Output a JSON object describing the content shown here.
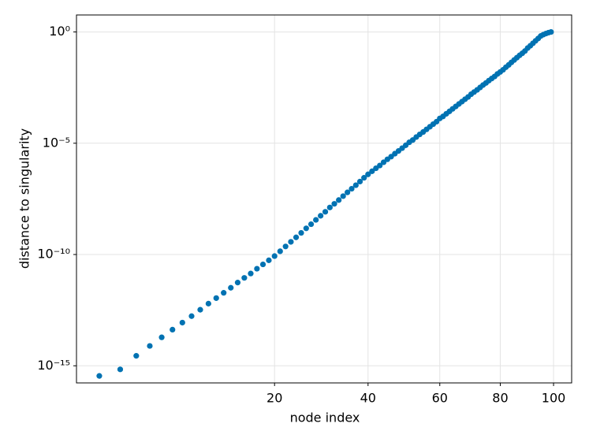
{
  "chart_data": {
    "type": "scatter",
    "xlabel": "node index",
    "ylabel": "distance to singularity",
    "x": [
      1,
      2,
      3,
      4,
      5,
      6,
      7,
      8,
      9,
      10,
      11,
      12,
      13,
      14,
      15,
      16,
      17,
      18,
      19,
      20,
      21,
      22,
      23,
      24,
      25,
      26,
      27,
      28,
      29,
      30,
      31,
      32,
      33,
      34,
      35,
      36,
      37,
      38,
      39,
      40,
      41,
      42,
      43,
      44,
      45,
      46,
      47,
      48,
      49,
      50,
      51,
      52,
      53,
      54,
      55,
      56,
      57,
      58,
      59,
      60,
      61,
      62,
      63,
      64,
      65,
      66,
      67,
      68,
      69,
      70,
      71,
      72,
      73,
      74,
      75,
      76,
      77,
      78,
      79,
      80,
      81,
      82,
      83,
      84,
      85,
      86,
      87,
      88,
      89,
      90,
      91,
      92,
      93,
      94,
      95,
      96,
      97,
      98,
      99
    ],
    "values": [
      3.5e-16,
      6.9e-16,
      2.8e-15,
      7.8e-15,
      1.9e-14,
      4.2e-14,
      8.7e-14,
      1.7e-13,
      3.3e-13,
      6.2e-13,
      1.1e-12,
      1.9e-12,
      3.2e-12,
      5.5e-12,
      8.9e-12,
      1.4e-11,
      2.3e-11,
      3.6e-11,
      5.5e-11,
      8.5e-11,
      1.4e-10,
      2.3e-10,
      3.7e-10,
      5.9e-10,
      9.4e-10,
      1.5e-09,
      2.3e-09,
      3.6e-09,
      5.5e-09,
      8.3e-09,
      1.3e-08,
      1.9e-08,
      2.8e-08,
      4.2e-08,
      6.2e-08,
      9e-08,
      1.3e-07,
      1.9e-07,
      2.8e-07,
      4e-07,
      5.5e-07,
      7.5e-07,
      1e-06,
      1.4e-06,
      1.9e-06,
      2.5e-06,
      3.4e-06,
      4.5e-06,
      6e-06,
      8.1e-06,
      1.1e-05,
      1.4e-05,
      1.9e-05,
      2.5e-05,
      3.2e-05,
      4.2e-05,
      5.5e-05,
      7.2e-05,
      9.3e-05,
      0.00013,
      0.00016,
      0.00021,
      0.00027,
      0.00035,
      0.00045,
      0.00058,
      0.00074,
      0.00095,
      0.0012,
      0.0016,
      0.002,
      0.0025,
      0.0032,
      0.0041,
      0.0051,
      0.0065,
      0.0081,
      0.01,
      0.013,
      0.016,
      0.02,
      0.026,
      0.033,
      0.043,
      0.055,
      0.07,
      0.089,
      0.11,
      0.14,
      0.19,
      0.24,
      0.31,
      0.4,
      0.51,
      0.66,
      0.76,
      0.85,
      0.93,
      1
    ],
    "color": "#0072b2",
    "xscale": "sqrt",
    "yscale": "log",
    "xlim": [
      0.3,
      107.3
    ],
    "xticks": [
      20,
      40,
      60,
      80,
      100
    ],
    "ylim": [
      1.7e-16,
      5.8
    ],
    "yticks": [
      {
        "value": 1e-15,
        "label": "10⁻¹⁵"
      },
      {
        "value": 1e-10,
        "label": "10⁻¹⁰"
      },
      {
        "value": 1e-05,
        "label": "10⁻⁵"
      },
      {
        "value": 1,
        "label": "10⁰"
      }
    ],
    "grid": true
  }
}
